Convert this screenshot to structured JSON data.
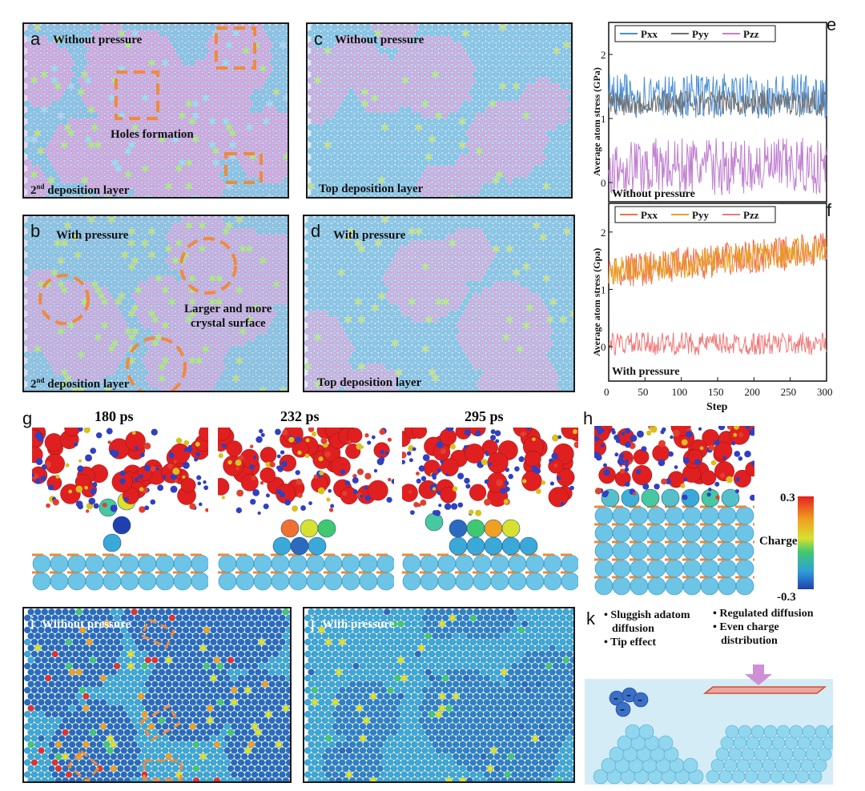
{
  "panels": {
    "a": {
      "label": "a",
      "title": "Without pressure",
      "note": "Holes formation",
      "layer": "2nd deposition layer",
      "layer_main": "2",
      "layer_sup": "nd",
      "layer_rest": " deposition layer"
    },
    "b": {
      "label": "b",
      "title": "With pressure",
      "note1": "Larger and more",
      "note2": "crystal surface",
      "layer_main": "2",
      "layer_sup": "nd",
      "layer_rest": " deposition layer"
    },
    "c": {
      "label": "c",
      "title": "Without pressure",
      "layer": "Top deposition layer"
    },
    "d": {
      "label": "d",
      "title": "With pressure",
      "layer": "Top deposition layer"
    },
    "e": {
      "label": "e",
      "caption": "Without pressure"
    },
    "f": {
      "label": "f",
      "caption": "With pressure"
    },
    "g": {
      "label": "g",
      "times": [
        "180 ps",
        "232 ps",
        "295 ps"
      ]
    },
    "h": {
      "label": "h",
      "colorbar": {
        "max": "0.3",
        "min": "-0.3",
        "title": "Charge"
      }
    },
    "i": {
      "label": "i",
      "title": "Without pressure"
    },
    "j": {
      "label": "j",
      "title": "With pressure"
    },
    "k": {
      "label": "k",
      "left1": "• Sluggish adatom",
      "left2": "diffusion",
      "left3": "• Tip effect",
      "right1": "• Regulated diffusion",
      "right2": "• Even charge",
      "right3": "distribution"
    }
  },
  "colors": {
    "atom_blue": "#7ec8e8",
    "atom_pink": "#d9a8e0",
    "atom_green": "#b8e08a",
    "highlight": "#f08a3c",
    "red": "#e53030",
    "orange_line": "#e8a020",
    "salmon_line": "#f07878",
    "pxx_e": "#4a8fd4",
    "pyy_e": "#707070",
    "pzz_e": "#c080d0"
  },
  "chart_data": [
    {
      "type": "line",
      "panel": "e",
      "ylabel": "Average atom stress (GPa)",
      "ylim": [
        -0.3,
        2.5
      ],
      "yticks": [
        "0",
        "1",
        "2"
      ],
      "xlim": [
        0,
        300
      ],
      "legend": [
        "Pxx",
        "Pyy",
        "Pzz"
      ],
      "series": [
        {
          "name": "Pxx",
          "mean": 1.35,
          "spread": 0.35
        },
        {
          "name": "Pyy",
          "mean": 1.25,
          "spread": 0.2
        },
        {
          "name": "Pzz",
          "mean": 0.25,
          "spread": 0.45
        }
      ]
    },
    {
      "type": "line",
      "panel": "f",
      "ylabel": "Average atom stress (Gpa)",
      "xlabel": "Step",
      "ylim": [
        -0.6,
        2.5
      ],
      "yticks": [
        "0",
        "1",
        "2"
      ],
      "xticks": [
        "0",
        "50",
        "100",
        "150",
        "200",
        "250",
        "300"
      ],
      "xlim": [
        0,
        300
      ],
      "legend": [
        "Pxx",
        "Pyy",
        "Pzz"
      ],
      "series": [
        {
          "name": "Pxx",
          "mean_start": 1.3,
          "mean_end": 1.7,
          "spread": 0.3
        },
        {
          "name": "Pyy",
          "mean_start": 1.3,
          "mean_end": 1.7,
          "spread": 0.25
        },
        {
          "name": "Pzz",
          "mean": 0.05,
          "spread": 0.2
        }
      ]
    }
  ]
}
